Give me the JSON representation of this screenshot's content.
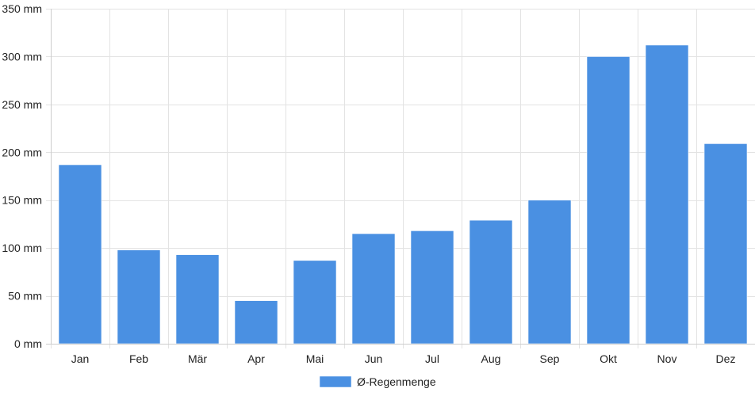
{
  "chart_data": {
    "type": "bar",
    "categories": [
      "Jan",
      "Feb",
      "Mär",
      "Apr",
      "Mai",
      "Jun",
      "Jul",
      "Aug",
      "Sep",
      "Okt",
      "Nov",
      "Dez"
    ],
    "series": [
      {
        "name": "Ø-Regenmenge",
        "values": [
          187,
          98,
          93,
          45,
          87,
          115,
          118,
          129,
          150,
          300,
          312,
          209
        ],
        "color": "#4a90e2"
      }
    ],
    "y_tick_labels": [
      "0 mm",
      "50 mm",
      "100 mm",
      "150 mm",
      "200 mm",
      "250 mm",
      "300 mm",
      "350 mm"
    ],
    "y_ticks": [
      0,
      50,
      100,
      150,
      200,
      250,
      300,
      350
    ],
    "ylim": [
      0,
      350
    ],
    "unit": "mm",
    "grid": true,
    "legend_position": "bottom-center"
  }
}
